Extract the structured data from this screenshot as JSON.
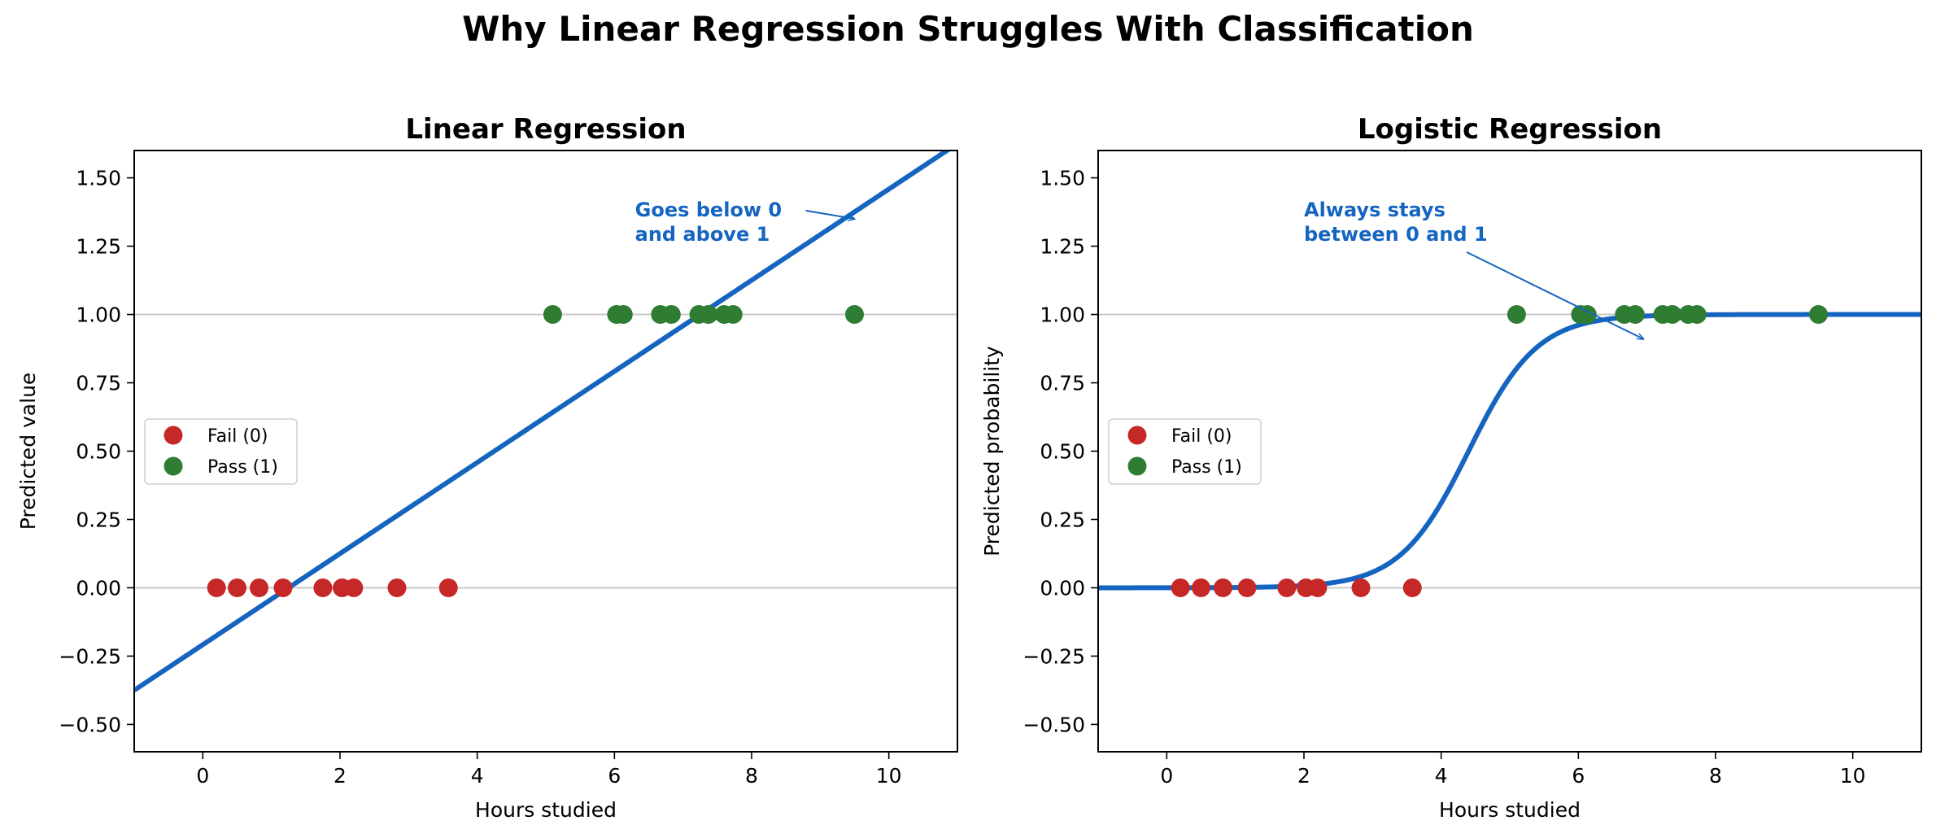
{
  "figure_title": "Why Linear Regression Struggles With Classification",
  "colors": {
    "fail": "#c62828",
    "pass": "#2e7d32",
    "line": "#1565c0",
    "annotation": "#1565c0",
    "reference": "#c8c8c8"
  },
  "chart_data": [
    {
      "type": "scatter",
      "title": "Linear Regression",
      "xlabel": "Hours studied",
      "ylabel": "Predicted value",
      "xlim": [
        -1,
        11
      ],
      "ylim": [
        -0.6,
        1.6
      ],
      "xticks": [
        0,
        2,
        4,
        6,
        8,
        10
      ],
      "yticks": [
        -0.5,
        -0.25,
        0,
        0.25,
        0.5,
        0.75,
        1,
        1.25,
        1.5
      ],
      "ytick_labels": [
        "−0.50",
        "−0.25",
        "0.00",
        "0.25",
        "0.50",
        "0.75",
        "1.00",
        "1.25",
        "1.50"
      ],
      "xtick_labels": [
        "0",
        "2",
        "4",
        "6",
        "8",
        "10"
      ],
      "reference_lines": [
        0,
        1
      ],
      "legend": {
        "position": "center-left",
        "entries": [
          "Fail (0)",
          "Pass (1)"
        ]
      },
      "series": [
        {
          "name": "Fail (0)",
          "y": 0,
          "x": [
            0.2,
            0.5,
            0.82,
            1.17,
            1.75,
            2.03,
            2.2,
            2.83,
            3.58
          ]
        },
        {
          "name": "Pass (1)",
          "y": 1,
          "x": [
            5.1,
            6.03,
            6.13,
            6.67,
            6.83,
            7.23,
            7.37,
            7.6,
            7.73,
            9.5
          ]
        }
      ],
      "fit_line": {
        "kind": "linear",
        "slope": 0.1667,
        "intercept": -0.2083
      },
      "annotation": {
        "lines": [
          "Goes below 0",
          "and above 1"
        ],
        "text_at": [
          6.3,
          1.27
        ],
        "arrow_to": [
          9.5,
          1.35
        ]
      }
    },
    {
      "type": "scatter",
      "title": "Logistic Regression",
      "xlabel": "Hours studied",
      "ylabel": "Predicted probability",
      "xlim": [
        -1,
        11
      ],
      "ylim": [
        -0.6,
        1.6
      ],
      "xticks": [
        0,
        2,
        4,
        6,
        8,
        10
      ],
      "yticks": [
        -0.5,
        -0.25,
        0,
        0.25,
        0.5,
        0.75,
        1,
        1.25,
        1.5
      ],
      "ytick_labels": [
        "−0.50",
        "−0.25",
        "0.00",
        "0.25",
        "0.50",
        "0.75",
        "1.00",
        "1.25",
        "1.50"
      ],
      "xtick_labels": [
        "0",
        "2",
        "4",
        "6",
        "8",
        "10"
      ],
      "reference_lines": [
        0,
        1
      ],
      "legend": {
        "position": "center-left",
        "entries": [
          "Fail (0)",
          "Pass (1)"
        ]
      },
      "series": [
        {
          "name": "Fail (0)",
          "y": 0,
          "x": [
            0.2,
            0.5,
            0.82,
            1.17,
            1.75,
            2.03,
            2.2,
            2.83,
            3.58
          ]
        },
        {
          "name": "Pass (1)",
          "y": 1,
          "x": [
            5.1,
            6.03,
            6.13,
            6.67,
            6.83,
            7.23,
            7.37,
            7.6,
            7.73,
            9.5
          ]
        }
      ],
      "fit_line": {
        "kind": "logistic",
        "k": 2.0,
        "x0": 4.4
      },
      "annotation": {
        "lines": [
          "Always stays",
          "between 0 and 1"
        ],
        "text_at": [
          2.0,
          1.27
        ],
        "arrow_to": [
          6.95,
          0.91
        ]
      }
    }
  ]
}
